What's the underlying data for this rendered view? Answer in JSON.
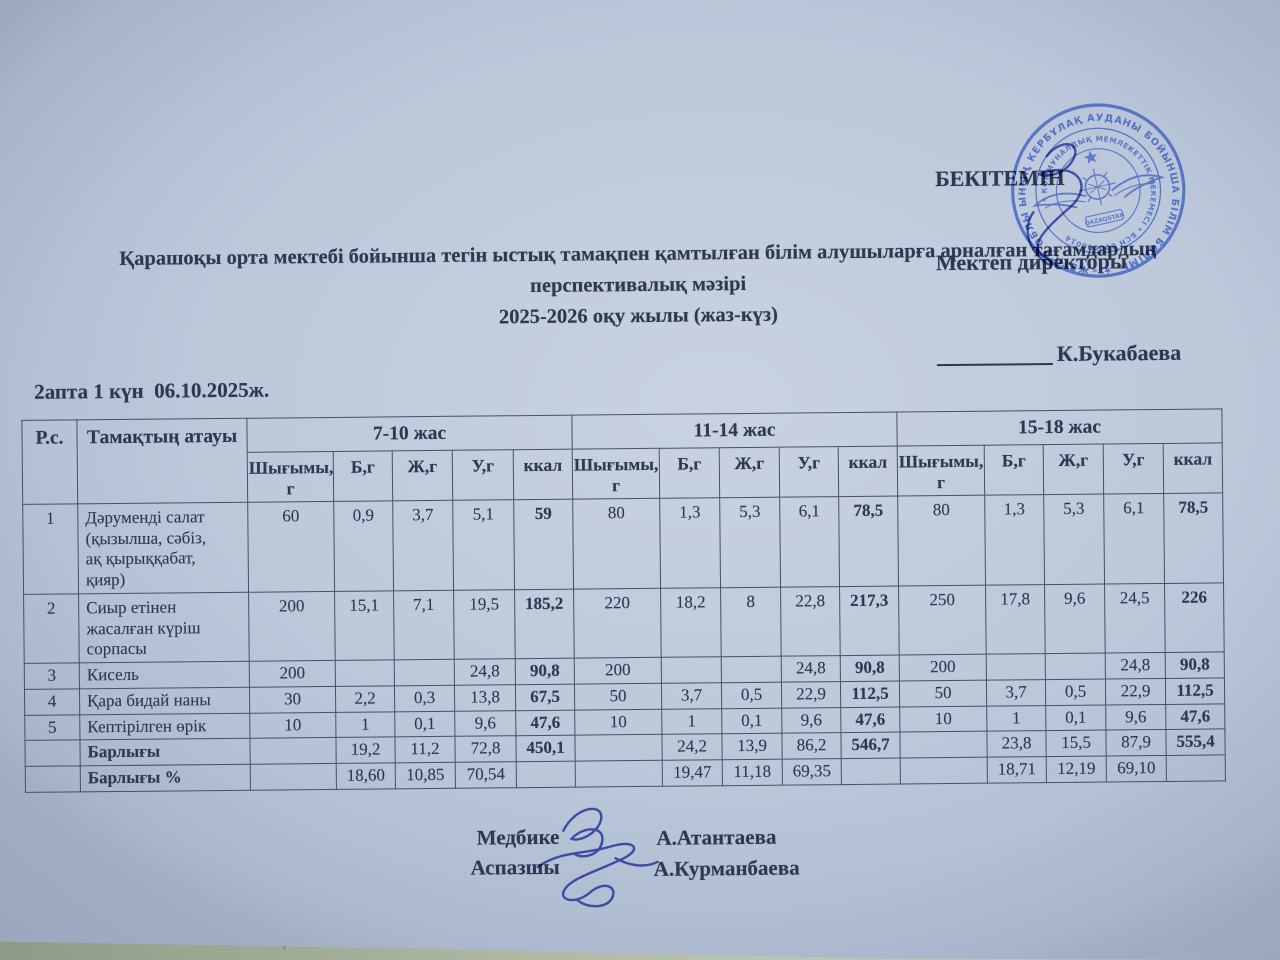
{
  "approval": {
    "line1": "БЕКІТЕМІН",
    "line2": "Мектеп директоры",
    "name": "К.Букабаева"
  },
  "title": {
    "line1": "Қарашоқы орта мектебі бойынша тегін ыстық тамақпен қамтылған білім алушыларға арналған тағамдардың",
    "line2": "перспективалық мәзірі",
    "line3": "2025-2026 оқу жылы (жаз-күз)"
  },
  "date_line": "2апта 1 күн  06.10.2025ж.",
  "table": {
    "col1": "Р.с.",
    "col2": "Тамақтың атауы",
    "groups": [
      "7-10 жас",
      "11-14 жас",
      "15-18 жас"
    ],
    "subheaders": [
      "Шығымы, г",
      "Б,г",
      "Ж,г",
      "У,г",
      "ккал"
    ],
    "rows": [
      {
        "num": "1",
        "name": "Дәруменді салат (қызылша, сәбіз, ақ қырыққабат, қияр)",
        "bold": false,
        "cells": [
          "60",
          "0,9",
          "3,7",
          "5,1",
          "59",
          "80",
          "1,3",
          "5,3",
          "6,1",
          "78,5",
          "80",
          "1,3",
          "5,3",
          "6,1",
          "78,5"
        ]
      },
      {
        "num": "2",
        "name": "Сиыр етінен жасалған күріш сорпасы",
        "bold": false,
        "cells": [
          "200",
          "15,1",
          "7,1",
          "19,5",
          "185,2",
          "220",
          "18,2",
          "8",
          "22,8",
          "217,3",
          "250",
          "17,8",
          "9,6",
          "24,5",
          "226"
        ]
      },
      {
        "num": "3",
        "name": "Кисель",
        "bold": false,
        "cells": [
          "200",
          "",
          "",
          "24,8",
          "90,8",
          "200",
          "",
          "",
          "24,8",
          "90,8",
          "200",
          "",
          "",
          "24,8",
          "90,8"
        ]
      },
      {
        "num": "4",
        "name": "Қара бидай наны",
        "bold": false,
        "cells": [
          "30",
          "2,2",
          "0,3",
          "13,8",
          "67,5",
          "50",
          "3,7",
          "0,5",
          "22,9",
          "112,5",
          "50",
          "3,7",
          "0,5",
          "22,9",
          "112,5"
        ]
      },
      {
        "num": "5",
        "name": "Кептірілген өрік",
        "bold": false,
        "cells": [
          "10",
          "1",
          "0,1",
          "9,6",
          "47,6",
          "10",
          "1",
          "0,1",
          "9,6",
          "47,6",
          "10",
          "1",
          "0,1",
          "9,6",
          "47,6"
        ]
      },
      {
        "num": "",
        "name": "Барлығы",
        "bold": true,
        "cells": [
          "",
          "19,2",
          "11,2",
          "72,8",
          "450,1",
          "",
          "24,2",
          "13,9",
          "86,2",
          "546,7",
          "",
          "23,8",
          "15,5",
          "87,9",
          "555,4"
        ]
      },
      {
        "num": "",
        "name": "Барлығы %",
        "bold": true,
        "cells": [
          "",
          "18,60",
          "10,85",
          "70,54",
          "",
          "",
          "19,47",
          "11,18",
          "69,35",
          "",
          "",
          "18,71",
          "12,19",
          "69,10",
          ""
        ]
      }
    ]
  },
  "signatories": {
    "row1_label": "Медбике",
    "row1_name": "А.Атантаева",
    "row2_label": "Аспазшы",
    "row2_name": "А.Курманбаева"
  },
  "stamp": {
    "outer_text": "ЫНЫҢ КЕРБҰЛАҚ АУДАНЫ БОЙЫНША БІЛІМ БӨЛІМІ» ★ «ЖЕТІСУ ОБЛЫС",
    "inner_text": "• КОММУНАЛДЫҚ МЕМЛЕКЕТТІК МЕКЕМЕСІ • БСН 000000014",
    "center_text": "QAZAQSTAN"
  },
  "colors": {
    "paper": "#bcc9db",
    "ink": "#2e3850",
    "line": "#46506a",
    "stamp": "#3c5fc1",
    "sig": "#2b3c9e",
    "desk": "#a7b49c"
  }
}
